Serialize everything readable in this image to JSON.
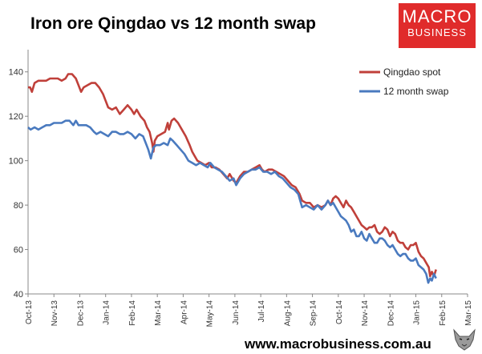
{
  "page": {
    "title": "Iron ore Qingdao vs 12 month swap",
    "logo_line1": "MACRO",
    "logo_line2": "BUSINESS",
    "footer": "www.macrobusiness.com.au"
  },
  "colors": {
    "qingdao": "#c0403a",
    "swap": "#4a7abf",
    "logo_bg": "#e02b2b"
  },
  "chart_data": {
    "type": "line",
    "title": "Iron ore Qingdao vs 12 month swap",
    "xlabel": "",
    "ylabel": "",
    "ylim": [
      40,
      150
    ],
    "yticks": [
      40,
      60,
      80,
      100,
      120,
      140
    ],
    "xticks": [
      "Oct-13",
      "Nov-13",
      "Dec-13",
      "Jan-14",
      "Feb-14",
      "Mar-14",
      "Apr-14",
      "May-14",
      "Jun-14",
      "Jul-14",
      "Aug-14",
      "Sep-14",
      "Oct-14",
      "Nov-14",
      "Dec-14",
      "Jan-15",
      "Feb-15",
      "Mar-15"
    ],
    "legend_position": "top-right",
    "grid": false,
    "x_unit": "months since Oct-13",
    "series": [
      {
        "name": "Qingdao spot",
        "color": "#c0403a",
        "points": [
          [
            0.0,
            133
          ],
          [
            0.08,
            133
          ],
          [
            0.15,
            131
          ],
          [
            0.25,
            135
          ],
          [
            0.4,
            136
          ],
          [
            0.55,
            136
          ],
          [
            0.7,
            136
          ],
          [
            0.85,
            137
          ],
          [
            1.0,
            137
          ],
          [
            1.15,
            137
          ],
          [
            1.3,
            136
          ],
          [
            1.45,
            137
          ],
          [
            1.55,
            139
          ],
          [
            1.7,
            139
          ],
          [
            1.85,
            137
          ],
          [
            1.95,
            134
          ],
          [
            2.05,
            131
          ],
          [
            2.15,
            133
          ],
          [
            2.3,
            134
          ],
          [
            2.45,
            135
          ],
          [
            2.6,
            135
          ],
          [
            2.75,
            133
          ],
          [
            2.9,
            130
          ],
          [
            3.0,
            127
          ],
          [
            3.1,
            124
          ],
          [
            3.25,
            123
          ],
          [
            3.4,
            124
          ],
          [
            3.55,
            121
          ],
          [
            3.7,
            123
          ],
          [
            3.85,
            125
          ],
          [
            4.0,
            123
          ],
          [
            4.1,
            121
          ],
          [
            4.2,
            123
          ],
          [
            4.35,
            120
          ],
          [
            4.5,
            118
          ],
          [
            4.6,
            115
          ],
          [
            4.7,
            113
          ],
          [
            4.8,
            108
          ],
          [
            4.85,
            104
          ],
          [
            4.9,
            109
          ],
          [
            5.0,
            111
          ],
          [
            5.15,
            112
          ],
          [
            5.3,
            113
          ],
          [
            5.4,
            117
          ],
          [
            5.45,
            114
          ],
          [
            5.55,
            118
          ],
          [
            5.65,
            119
          ],
          [
            5.8,
            117
          ],
          [
            5.95,
            114
          ],
          [
            6.1,
            111
          ],
          [
            6.25,
            107
          ],
          [
            6.35,
            104
          ],
          [
            6.45,
            102
          ],
          [
            6.55,
            100
          ],
          [
            6.7,
            99
          ],
          [
            6.85,
            98
          ],
          [
            7.0,
            99
          ],
          [
            7.1,
            97
          ],
          [
            7.25,
            97
          ],
          [
            7.4,
            96
          ],
          [
            7.55,
            94
          ],
          [
            7.7,
            92
          ],
          [
            7.8,
            94
          ],
          [
            7.95,
            91
          ],
          [
            8.05,
            90
          ],
          [
            8.2,
            93
          ],
          [
            8.35,
            95
          ],
          [
            8.5,
            95
          ],
          [
            8.65,
            96
          ],
          [
            8.8,
            97
          ],
          [
            8.95,
            98
          ],
          [
            9.05,
            96
          ],
          [
            9.15,
            95
          ],
          [
            9.3,
            96
          ],
          [
            9.45,
            96
          ],
          [
            9.6,
            95
          ],
          [
            9.75,
            94
          ],
          [
            9.9,
            93
          ],
          [
            10.05,
            91
          ],
          [
            10.2,
            89
          ],
          [
            10.35,
            88
          ],
          [
            10.5,
            85
          ],
          [
            10.6,
            82
          ],
          [
            10.75,
            81
          ],
          [
            10.9,
            81
          ],
          [
            11.05,
            79
          ],
          [
            11.2,
            80
          ],
          [
            11.35,
            79
          ],
          [
            11.5,
            80
          ],
          [
            11.6,
            82
          ],
          [
            11.7,
            80
          ],
          [
            11.8,
            83
          ],
          [
            11.9,
            84
          ],
          [
            12.0,
            83
          ],
          [
            12.1,
            81
          ],
          [
            12.2,
            79
          ],
          [
            12.3,
            82
          ],
          [
            12.4,
            80
          ],
          [
            12.5,
            79
          ],
          [
            12.6,
            77
          ],
          [
            12.7,
            75
          ],
          [
            12.8,
            73
          ],
          [
            12.9,
            71
          ],
          [
            13.0,
            70
          ],
          [
            13.1,
            69
          ],
          [
            13.2,
            70
          ],
          [
            13.3,
            70
          ],
          [
            13.4,
            71
          ],
          [
            13.5,
            68
          ],
          [
            13.6,
            67
          ],
          [
            13.7,
            68
          ],
          [
            13.8,
            70
          ],
          [
            13.9,
            69
          ],
          [
            14.0,
            66
          ],
          [
            14.1,
            68
          ],
          [
            14.2,
            67
          ],
          [
            14.3,
            64
          ],
          [
            14.4,
            63
          ],
          [
            14.5,
            63
          ],
          [
            14.6,
            61
          ],
          [
            14.7,
            60
          ],
          [
            14.8,
            62
          ],
          [
            14.9,
            62
          ],
          [
            15.0,
            63
          ],
          [
            15.1,
            59
          ],
          [
            15.2,
            57
          ],
          [
            15.3,
            56
          ],
          [
            15.4,
            54
          ],
          [
            15.5,
            52
          ],
          [
            15.55,
            48
          ],
          [
            15.62,
            50
          ],
          [
            15.7,
            48
          ],
          [
            15.78,
            51
          ]
        ]
      },
      {
        "name": "12 month swap",
        "color": "#4a7abf",
        "points": [
          [
            0.0,
            115
          ],
          [
            0.1,
            114
          ],
          [
            0.25,
            115
          ],
          [
            0.4,
            114
          ],
          [
            0.55,
            115
          ],
          [
            0.7,
            116
          ],
          [
            0.85,
            116
          ],
          [
            1.0,
            117
          ],
          [
            1.15,
            117
          ],
          [
            1.3,
            117
          ],
          [
            1.45,
            118
          ],
          [
            1.6,
            118
          ],
          [
            1.75,
            116
          ],
          [
            1.85,
            118
          ],
          [
            1.95,
            116
          ],
          [
            2.1,
            116
          ],
          [
            2.25,
            116
          ],
          [
            2.4,
            115
          ],
          [
            2.55,
            113
          ],
          [
            2.65,
            112
          ],
          [
            2.8,
            113
          ],
          [
            2.95,
            112
          ],
          [
            3.1,
            111
          ],
          [
            3.25,
            113
          ],
          [
            3.4,
            113
          ],
          [
            3.55,
            112
          ],
          [
            3.7,
            112
          ],
          [
            3.85,
            113
          ],
          [
            4.0,
            112
          ],
          [
            4.15,
            110
          ],
          [
            4.3,
            112
          ],
          [
            4.45,
            111
          ],
          [
            4.55,
            108
          ],
          [
            4.65,
            105
          ],
          [
            4.75,
            101
          ],
          [
            4.85,
            106
          ],
          [
            4.95,
            107
          ],
          [
            5.1,
            107
          ],
          [
            5.25,
            108
          ],
          [
            5.4,
            107
          ],
          [
            5.5,
            110
          ],
          [
            5.6,
            109
          ],
          [
            5.75,
            107
          ],
          [
            5.9,
            105
          ],
          [
            6.05,
            103
          ],
          [
            6.2,
            100
          ],
          [
            6.35,
            99
          ],
          [
            6.5,
            98
          ],
          [
            6.65,
            99
          ],
          [
            6.8,
            98
          ],
          [
            6.95,
            97
          ],
          [
            7.05,
            99
          ],
          [
            7.2,
            97
          ],
          [
            7.35,
            96
          ],
          [
            7.5,
            95
          ],
          [
            7.65,
            93
          ],
          [
            7.8,
            91
          ],
          [
            7.95,
            92
          ],
          [
            8.05,
            89
          ],
          [
            8.2,
            92
          ],
          [
            8.35,
            94
          ],
          [
            8.5,
            95
          ],
          [
            8.65,
            96
          ],
          [
            8.8,
            96
          ],
          [
            8.95,
            97
          ],
          [
            9.1,
            95
          ],
          [
            9.25,
            95
          ],
          [
            9.4,
            94
          ],
          [
            9.55,
            95
          ],
          [
            9.7,
            93
          ],
          [
            9.85,
            92
          ],
          [
            10.0,
            90
          ],
          [
            10.15,
            88
          ],
          [
            10.3,
            87
          ],
          [
            10.45,
            85
          ],
          [
            10.6,
            79
          ],
          [
            10.75,
            80
          ],
          [
            10.9,
            79
          ],
          [
            11.05,
            78
          ],
          [
            11.2,
            80
          ],
          [
            11.35,
            78
          ],
          [
            11.5,
            80
          ],
          [
            11.6,
            82
          ],
          [
            11.7,
            80
          ],
          [
            11.8,
            81
          ],
          [
            11.9,
            79
          ],
          [
            12.0,
            77
          ],
          [
            12.1,
            75
          ],
          [
            12.2,
            74
          ],
          [
            12.3,
            73
          ],
          [
            12.4,
            71
          ],
          [
            12.5,
            68
          ],
          [
            12.6,
            69
          ],
          [
            12.7,
            66
          ],
          [
            12.8,
            66
          ],
          [
            12.9,
            68
          ],
          [
            13.0,
            65
          ],
          [
            13.1,
            64
          ],
          [
            13.2,
            67
          ],
          [
            13.3,
            65
          ],
          [
            13.4,
            63
          ],
          [
            13.5,
            63
          ],
          [
            13.6,
            65
          ],
          [
            13.7,
            65
          ],
          [
            13.8,
            64
          ],
          [
            13.9,
            62
          ],
          [
            14.0,
            61
          ],
          [
            14.1,
            62
          ],
          [
            14.2,
            60
          ],
          [
            14.3,
            58
          ],
          [
            14.4,
            57
          ],
          [
            14.5,
            58
          ],
          [
            14.6,
            58
          ],
          [
            14.7,
            56
          ],
          [
            14.8,
            55
          ],
          [
            14.9,
            55
          ],
          [
            15.0,
            56
          ],
          [
            15.1,
            53
          ],
          [
            15.2,
            52
          ],
          [
            15.3,
            51
          ],
          [
            15.4,
            49
          ],
          [
            15.48,
            45
          ],
          [
            15.55,
            47
          ],
          [
            15.62,
            46
          ],
          [
            15.7,
            49
          ],
          [
            15.78,
            47
          ]
        ]
      }
    ]
  }
}
